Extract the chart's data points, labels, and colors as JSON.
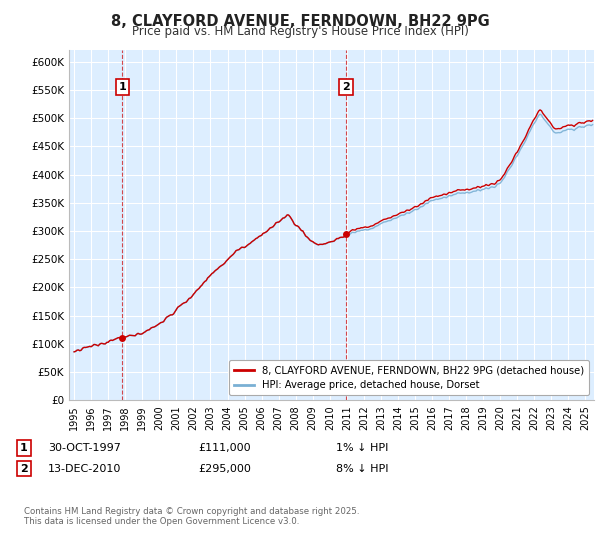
{
  "title": "8, CLAYFORD AVENUE, FERNDOWN, BH22 9PG",
  "subtitle": "Price paid vs. HM Land Registry's House Price Index (HPI)",
  "ylabel_ticks": [
    "£0",
    "£50K",
    "£100K",
    "£150K",
    "£200K",
    "£250K",
    "£300K",
    "£350K",
    "£400K",
    "£450K",
    "£500K",
    "£550K",
    "£600K"
  ],
  "ytick_values": [
    0,
    50000,
    100000,
    150000,
    200000,
    250000,
    300000,
    350000,
    400000,
    450000,
    500000,
    550000,
    600000
  ],
  "ylim": [
    0,
    620000
  ],
  "xlim_left": 1994.7,
  "xlim_right": 2025.5,
  "sale1_date": 1997.83,
  "sale1_price": 111000,
  "sale2_date": 2010.95,
  "sale2_price": 295000,
  "legend_line1": "8, CLAYFORD AVENUE, FERNDOWN, BH22 9PG (detached house)",
  "legend_line2": "HPI: Average price, detached house, Dorset",
  "footer": "Contains HM Land Registry data © Crown copyright and database right 2025.\nThis data is licensed under the Open Government Licence v3.0.",
  "line_color_red": "#cc0000",
  "line_color_blue": "#7ab0d4",
  "bg_color": "#ddeeff",
  "grid_color": "#ffffff",
  "vline_color": "#cc0000"
}
